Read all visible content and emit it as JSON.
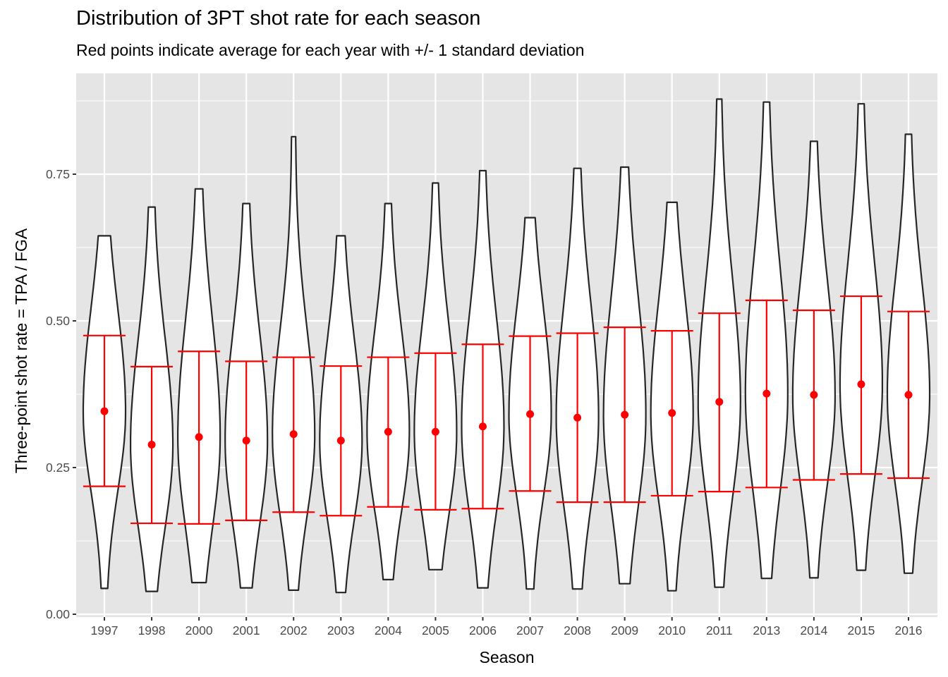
{
  "chart_data": {
    "type": "violin",
    "title": "Distribution of 3PT shot rate for each season",
    "subtitle": "Red points indicate average for each year with +/- 1 standard deviation",
    "xlabel": "Season",
    "ylabel": "Three-point shot rate = TPA / FGA",
    "ylim": [
      -0.004,
      0.92
    ],
    "yticks": [
      0.0,
      0.25,
      0.5,
      0.75
    ],
    "ytick_labels": [
      "0.00",
      "0.25",
      "0.50",
      "0.75"
    ],
    "grid": true,
    "legend": "none",
    "colors": {
      "panel": "#e5e5e5",
      "grid": "#ffffff",
      "violin_fill": "#ffffff",
      "violin_stroke": "#262626",
      "summary": "#ff0000",
      "tick_text": "#4d4d4d"
    },
    "categories": [
      "1997",
      "1998",
      "2000",
      "2001",
      "2002",
      "2003",
      "2004",
      "2005",
      "2006",
      "2007",
      "2008",
      "2009",
      "2010",
      "2011",
      "2013",
      "2014",
      "2015",
      "2016"
    ],
    "series": [
      {
        "name": "mean",
        "values": [
          0.346,
          0.289,
          0.302,
          0.296,
          0.307,
          0.296,
          0.311,
          0.311,
          0.32,
          0.341,
          0.335,
          0.34,
          0.343,
          0.362,
          0.376,
          0.374,
          0.392,
          0.374
        ]
      },
      {
        "name": "mean_plus_sd",
        "values": [
          0.475,
          0.422,
          0.448,
          0.431,
          0.438,
          0.423,
          0.438,
          0.445,
          0.46,
          0.474,
          0.479,
          0.489,
          0.483,
          0.513,
          0.535,
          0.518,
          0.542,
          0.516
        ]
      },
      {
        "name": "mean_minus_sd",
        "values": [
          0.218,
          0.155,
          0.154,
          0.16,
          0.174,
          0.168,
          0.183,
          0.178,
          0.18,
          0.21,
          0.191,
          0.191,
          0.202,
          0.209,
          0.216,
          0.229,
          0.239,
          0.232
        ]
      },
      {
        "name": "violin_min",
        "values": [
          0.044,
          0.039,
          0.054,
          0.045,
          0.041,
          0.037,
          0.059,
          0.076,
          0.045,
          0.043,
          0.043,
          0.052,
          0.04,
          0.046,
          0.061,
          0.062,
          0.075,
          0.07
        ]
      },
      {
        "name": "violin_max",
        "values": [
          0.645,
          0.694,
          0.725,
          0.7,
          0.814,
          0.645,
          0.7,
          0.735,
          0.756,
          0.676,
          0.76,
          0.762,
          0.702,
          0.878,
          0.873,
          0.806,
          0.87,
          0.818
        ]
      }
    ]
  }
}
